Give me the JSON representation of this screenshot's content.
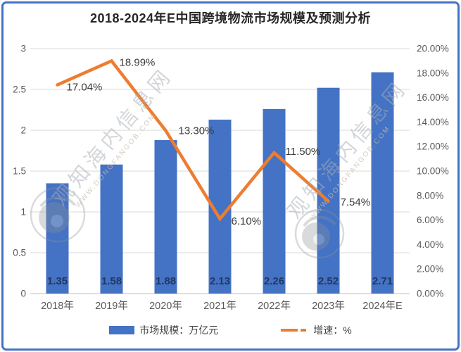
{
  "colors": {
    "frame": "#4472C4",
    "bar": "#4472C4",
    "line": "#ED7D31",
    "grid": "#D9D9D9",
    "axis_line": "#BFBFBF",
    "tick_text": "#595959",
    "bar_label": "#1F3864",
    "line_label": "#3A3A3A",
    "title_text": "#262626"
  },
  "watermark": {
    "text": "观知海内信息网",
    "url": "WWW.DONGFANGOB.COM",
    "logo": "swirl-camera-logo"
  },
  "chart_data": {
    "type": "bar+line combo",
    "title": "2018-2024年E中国跨境物流市场规模及预测分析",
    "categories": [
      "2018年",
      "2019年",
      "2020年",
      "2021年",
      "2022年",
      "2023年",
      "2024年E"
    ],
    "series": [
      {
        "name": "市场规模：万亿元",
        "type": "bar",
        "axis": "left",
        "color": "#4472C4",
        "values": [
          1.35,
          1.58,
          1.88,
          2.13,
          2.26,
          2.52,
          2.71
        ],
        "labels": [
          "1.35",
          "1.58",
          "1.88",
          "2.13",
          "2.26",
          "2.52",
          "2.71"
        ]
      },
      {
        "name": "增速：%",
        "type": "line",
        "axis": "right",
        "color": "#ED7D31",
        "values": [
          17.04,
          18.99,
          13.3,
          6.1,
          11.5,
          7.54,
          null
        ],
        "labels": [
          "17.04%",
          "18.99%",
          "13.30%",
          "6.10%",
          "11.50%",
          "7.54%"
        ]
      }
    ],
    "left_axis": {
      "min": 0,
      "max": 3,
      "step": 0.5,
      "ticks": [
        "0",
        "0.5",
        "1",
        "1.5",
        "2",
        "2.5",
        "3"
      ]
    },
    "right_axis": {
      "min": 0,
      "max": 20,
      "step": 2,
      "ticks": [
        "0.00%",
        "2.00%",
        "4.00%",
        "6.00%",
        "8.00%",
        "10.00%",
        "12.00%",
        "14.00%",
        "16.00%",
        "18.00%",
        "20.00%"
      ]
    },
    "grid": true,
    "legend_position": "bottom"
  }
}
